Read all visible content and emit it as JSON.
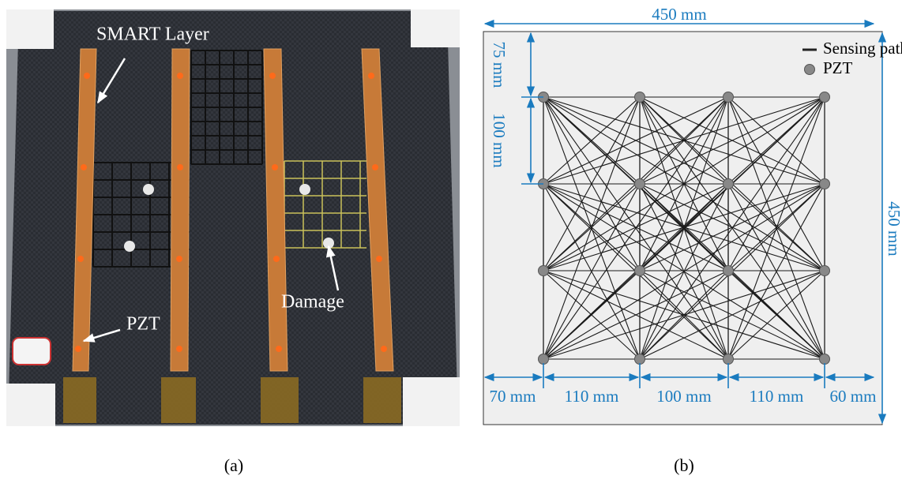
{
  "panel_a": {
    "labels": {
      "smart_layer": "SMART Layer",
      "pzt": "PZT",
      "damage": "Damage"
    },
    "caption": "(a)"
  },
  "panel_b": {
    "legend": {
      "path": "Sensing path",
      "pzt": "PZT"
    },
    "dimensions": {
      "width": "450 mm",
      "height": "450 mm",
      "top_offset": "75 mm",
      "row_spacing": "100 mm",
      "bottom": [
        "70 mm",
        "110 mm",
        "100 mm",
        "110 mm",
        "60 mm"
      ]
    },
    "caption": "(b)"
  }
}
